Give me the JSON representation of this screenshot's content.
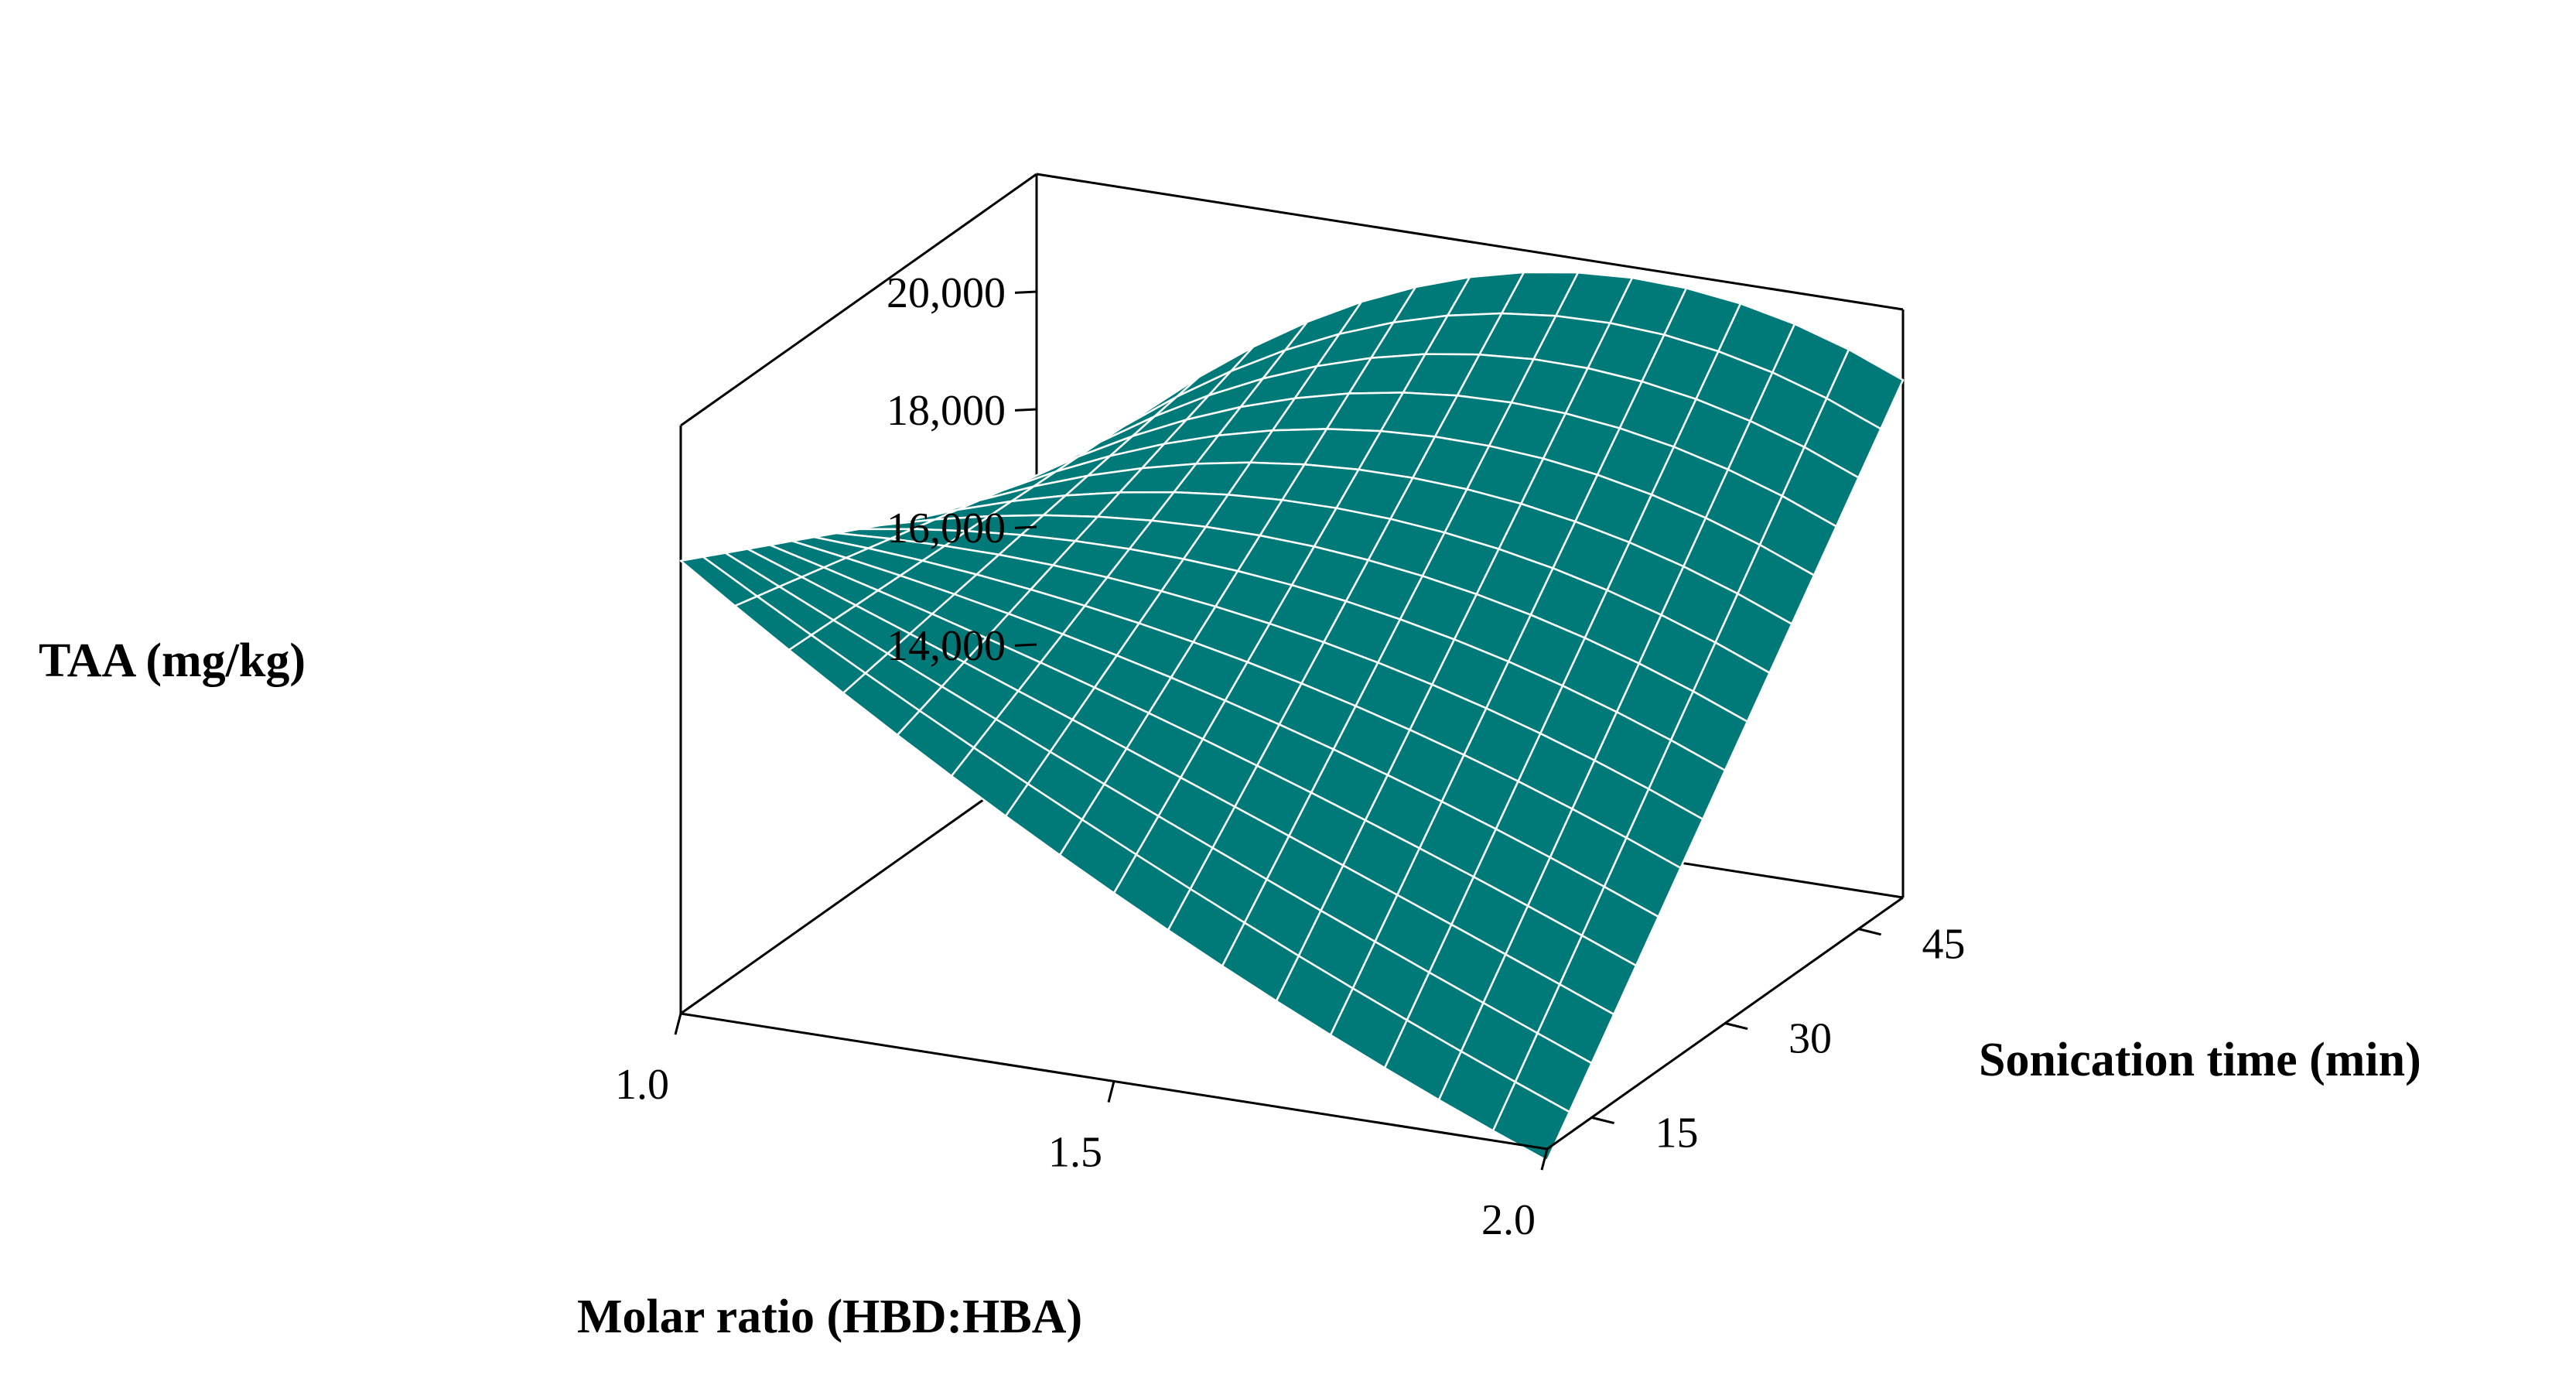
{
  "chart_data": {
    "type": "surface",
    "x": {
      "label": "Molar ratio (HBD:HBA)",
      "range": [
        1.0,
        2.0
      ],
      "ticks": [
        1.0,
        1.5,
        2.0
      ],
      "tick_labels": [
        "1.0",
        "1.5",
        "2.0"
      ]
    },
    "y": {
      "label": "Sonication time (min)",
      "range": [
        10,
        50
      ],
      "ticks": [
        15,
        30,
        45
      ],
      "tick_labels": [
        "15",
        "30",
        "45"
      ]
    },
    "z": {
      "label": "TAA (mg/kg)",
      "range": [
        12000,
        22000
      ],
      "ticks": [
        14000,
        16000,
        18000,
        20000
      ],
      "tick_labels": [
        "14,000",
        "16,000",
        "18,000",
        "20,000"
      ]
    },
    "surface": {
      "color": "#007A78",
      "grid_color": "#ffffff",
      "corners": {
        "x1.0_y10": 19700,
        "x1.0_y50": 16500,
        "x2.0_y10": 11800,
        "x2.0_y50": 20800
      },
      "center": 16400,
      "saddle_peak_mid_x_at_y50": 21400
    },
    "grid": false
  }
}
